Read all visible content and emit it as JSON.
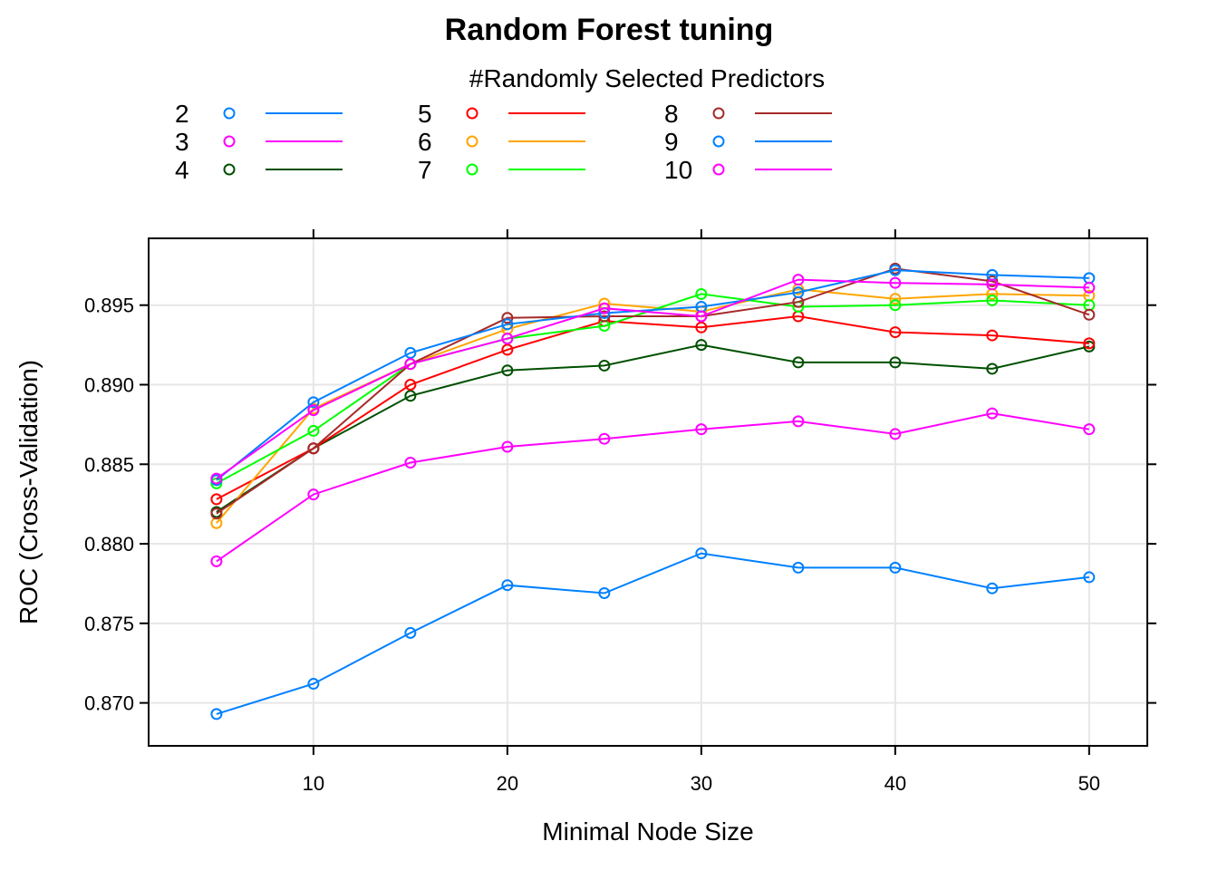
{
  "chart_data": {
    "type": "line",
    "title": "Random Forest tuning",
    "legend_title": "#Randomly Selected Predictors",
    "legend_position": "top",
    "xlabel": "Minimal Node Size",
    "ylabel": "ROC (Cross-Validation)",
    "x": [
      5,
      10,
      15,
      20,
      25,
      30,
      35,
      40,
      45,
      50
    ],
    "xlim": [
      1.5,
      53
    ],
    "ylim": [
      0.8673,
      0.8992
    ],
    "x_ticks": [
      "10",
      "20",
      "30",
      "40",
      "50"
    ],
    "y_ticks": [
      "0.870",
      "0.875",
      "0.880",
      "0.885",
      "0.890",
      "0.895"
    ],
    "grid": true,
    "series": [
      {
        "name": "2",
        "color": "#0080ff",
        "values": [
          0.8693,
          0.8712,
          0.8744,
          0.8774,
          0.8769,
          0.8794,
          0.8785,
          0.8785,
          0.8772,
          0.8779
        ]
      },
      {
        "name": "3",
        "color": "#ff00ff",
        "values": [
          0.8789,
          0.8831,
          0.8851,
          0.8861,
          0.8866,
          0.8872,
          0.8877,
          0.8869,
          0.8882,
          0.8872
        ]
      },
      {
        "name": "4",
        "color": "#005000",
        "values": [
          0.882,
          0.886,
          0.8893,
          0.8909,
          0.8912,
          0.8925,
          0.8914,
          0.8914,
          0.891,
          0.8924
        ]
      },
      {
        "name": "5",
        "color": "#ff0000",
        "values": [
          0.8828,
          0.886,
          0.89,
          0.8922,
          0.894,
          0.8936,
          0.8943,
          0.8933,
          0.8931,
          0.8926
        ]
      },
      {
        "name": "6",
        "color": "#ffa500",
        "values": [
          0.8813,
          0.8885,
          0.8913,
          0.8935,
          0.8951,
          0.8946,
          0.896,
          0.8954,
          0.8957,
          0.8956
        ]
      },
      {
        "name": "7",
        "color": "#00ff00",
        "values": [
          0.8838,
          0.8871,
          0.8913,
          0.8929,
          0.8937,
          0.8957,
          0.8949,
          0.895,
          0.8953,
          0.895
        ]
      },
      {
        "name": "8",
        "color": "#a52a2a",
        "values": [
          0.8819,
          0.886,
          0.8913,
          0.8942,
          0.8943,
          0.8943,
          0.8952,
          0.8973,
          0.8965,
          0.8944
        ]
      },
      {
        "name": "9",
        "color": "#0080ff",
        "values": [
          0.884,
          0.8889,
          0.892,
          0.8938,
          0.8945,
          0.8949,
          0.8958,
          0.8972,
          0.8969,
          0.8967
        ]
      },
      {
        "name": "10",
        "color": "#ff00ff",
        "values": [
          0.8841,
          0.8884,
          0.8913,
          0.8929,
          0.8948,
          0.8943,
          0.8966,
          0.8964,
          0.8963,
          0.8961
        ]
      }
    ]
  }
}
